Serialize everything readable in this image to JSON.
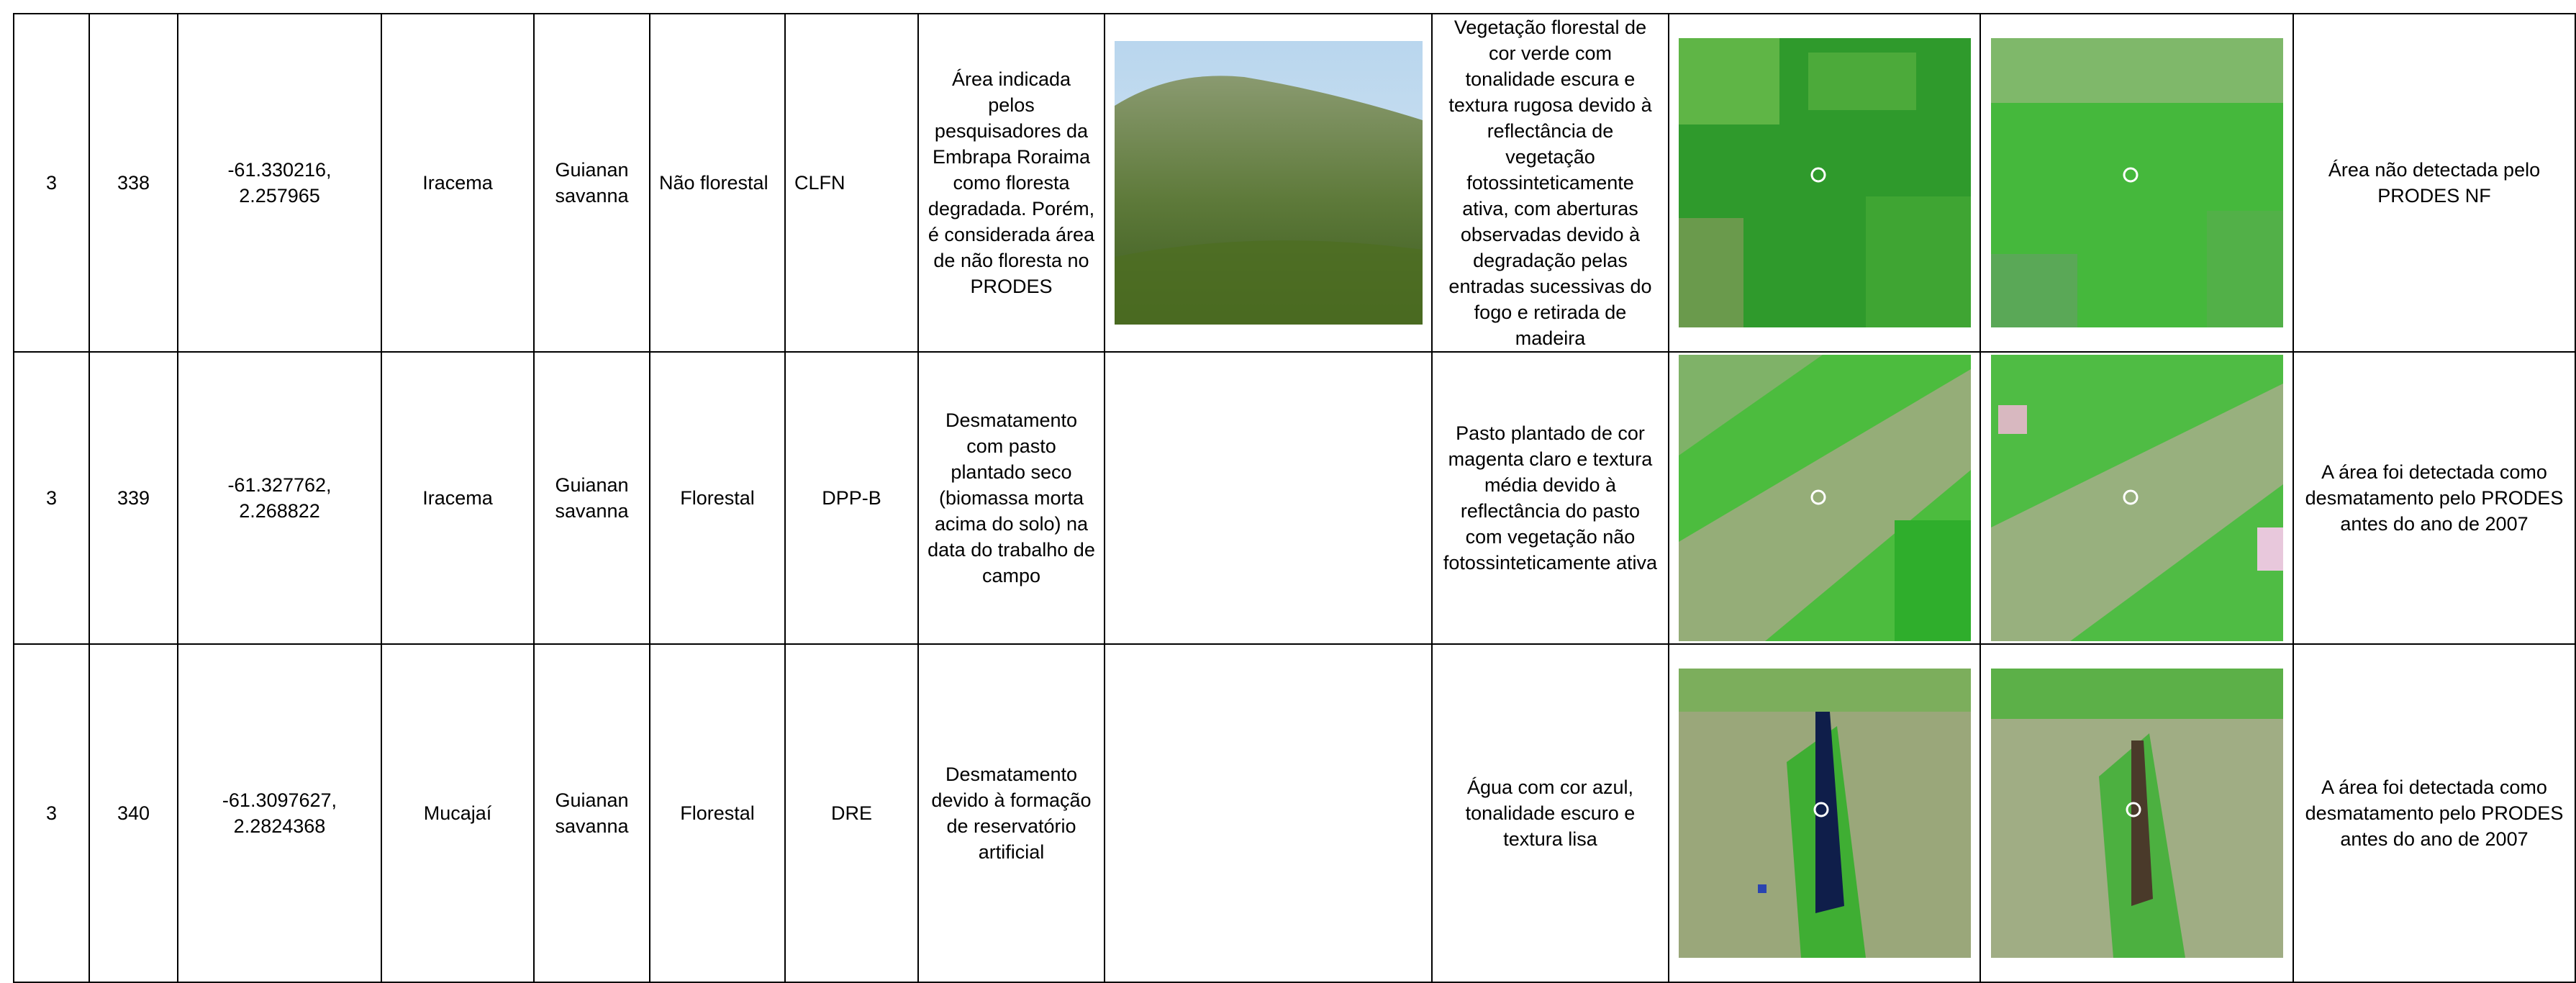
{
  "table": {
    "rows": [
      [
        "3",
        "338",
        "-61.330216, 2.257965",
        "Iracema",
        "Guianan savanna",
        "Não florestal",
        "CLFN",
        "Área indicada pelos pesquisadores da Embrapa Roraima como floresta degradada. Porém, é considerada área de não floresta no PRODES",
        "Vegetação florestal de cor verde com tonalidade escura e textura rugosa devido à reflectância de vegetação fotossinteticamente ativa, com aberturas observadas devido à degradação pelas entradas sucessivas do fogo e retirada de madeira",
        "Área não detectada pelo PRODES NF"
      ],
      [
        "3",
        "339",
        "-61.327762, 2.268822",
        "Iracema",
        "Guianan savanna",
        "Florestal",
        "DPP-B",
        "Desmatamento com pasto plantado seco (biomassa morta acima do solo) na data do trabalho de campo",
        "Pasto plantado de cor magenta claro e textura média devido à reflectância do pasto com vegetação não fotossinteticamente ativa",
        "A área foi detectada como desmatamento pelo PRODES antes do ano de 2007"
      ],
      [
        "3",
        "340",
        "-61.3097627, 2.2824368",
        "Mucajaí",
        "Guianan savanna",
        "Florestal",
        "DRE",
        "Desmatamento devido à formação de reservatório artificial",
        "Água com cor azul, tonalidade escuro e textura lisa",
        "A área foi detectada como desmatamento pelo PRODES antes do ano de 2007"
      ]
    ]
  }
}
